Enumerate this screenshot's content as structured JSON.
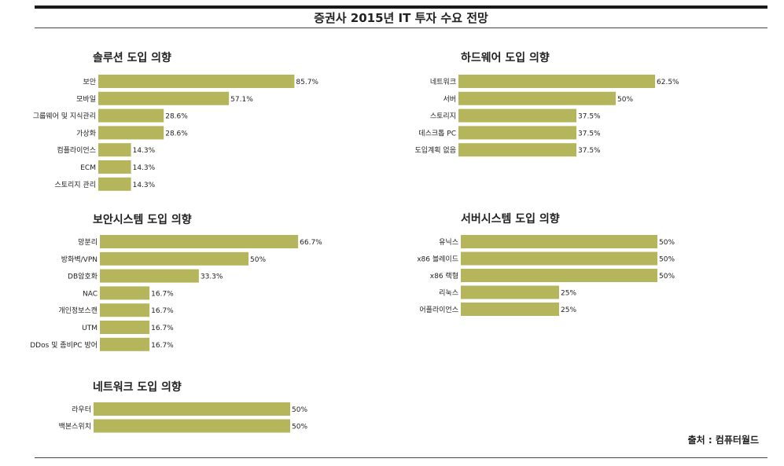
{
  "title": "증권사 2015년 IT 투자 수요 전망",
  "source": "출처 : 컴퓨터월드",
  "colors": {
    "bar": "#b5b65c",
    "rule": "#1a1a1a"
  },
  "chart_data": [
    {
      "type": "bar",
      "orientation": "horizontal",
      "title": "솔루션 도입 의향",
      "categories": [
        "보안",
        "모바일",
        "그룹웨어 및 지식관리",
        "가상화",
        "컴플라이언스",
        "ECM",
        "스토리지 관리"
      ],
      "values": [
        85.7,
        57.1,
        28.6,
        28.6,
        14.3,
        14.3,
        14.3
      ],
      "value_labels": [
        "85.7%",
        "57.1%",
        "28.6%",
        "28.6%",
        "14.3%",
        "14.3%",
        "14.3%"
      ],
      "xlim": [
        0,
        100
      ]
    },
    {
      "type": "bar",
      "orientation": "horizontal",
      "title": "하드웨어 도입 의향",
      "categories": [
        "네트워크",
        "서버",
        "스토리지",
        "데스크톱 PC",
        "도입계획 없음"
      ],
      "values": [
        62.5,
        50,
        37.5,
        37.5,
        37.5
      ],
      "value_labels": [
        "62.5%",
        "50%",
        "37.5%",
        "37.5%",
        "37.5%"
      ],
      "xlim": [
        0,
        100
      ]
    },
    {
      "type": "bar",
      "orientation": "horizontal",
      "title": "보안시스템 도입 의향",
      "categories": [
        "망분리",
        "방화벽/VPN",
        "DB암호화",
        "NAC",
        "개인정보스캔",
        "UTM",
        "DDos 및 좀비PC 방어"
      ],
      "values": [
        66.7,
        50,
        33.3,
        16.7,
        16.7,
        16.7,
        16.7
      ],
      "value_labels": [
        "66.7%",
        "50%",
        "33.3%",
        "16.7%",
        "16.7%",
        "16.7%",
        "16.7%"
      ],
      "xlim": [
        0,
        100
      ]
    },
    {
      "type": "bar",
      "orientation": "horizontal",
      "title": "서버시스템 도입 의향",
      "categories": [
        "유닉스",
        "x86 블레이드",
        "x86 랙형",
        "리눅스",
        "어플라이언스"
      ],
      "values": [
        50,
        50,
        50,
        25,
        25
      ],
      "value_labels": [
        "50%",
        "50%",
        "50%",
        "25%",
        "25%"
      ],
      "xlim": [
        0,
        100
      ]
    },
    {
      "type": "bar",
      "orientation": "horizontal",
      "title": "네트워크 도입 의향",
      "categories": [
        "라우터",
        "백본스위치"
      ],
      "values": [
        50,
        50
      ],
      "value_labels": [
        "50%",
        "50%"
      ],
      "xlim": [
        0,
        100
      ]
    }
  ]
}
